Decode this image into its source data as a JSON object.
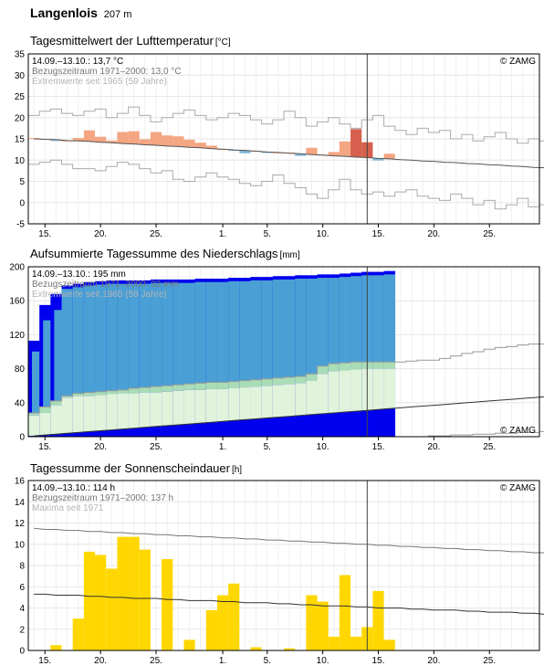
{
  "station": {
    "name": "Langenlois",
    "altitude": "207 m"
  },
  "x_axis": {
    "days": 46,
    "start_day": 13.5,
    "ticks": [
      {
        "label": "15.",
        "day": 15
      },
      {
        "label": "20.",
        "day": 20
      },
      {
        "label": "25.",
        "day": 25
      },
      {
        "label": "1.",
        "day": 31
      },
      {
        "label": "5.",
        "day": 35
      },
      {
        "label": "10.",
        "day": 40
      },
      {
        "label": "15.",
        "day": 45
      },
      {
        "label": "20.",
        "day": 50
      },
      {
        "label": "25.",
        "day": 55
      }
    ],
    "today_day": 44
  },
  "copyright": "© ZAMG",
  "chart_data": [
    {
      "type": "bar",
      "title": "Tagesmittelwert der Lufttemperatur",
      "unit": "[°C]",
      "ylim": [
        -5,
        35
      ],
      "yticks": [
        -5,
        0,
        5,
        10,
        15,
        20,
        25,
        30,
        35
      ],
      "info": [
        "14.09.–13.10.: 13,7 °C",
        "Bezugszeitraum 1971–2000: 13,0 °C",
        "Extremwerte seit 1965 (59 Jahre)"
      ],
      "colors": {
        "cold": "#7fb8d6",
        "cold_dark": "#2e86c1",
        "warm": "#f4a582",
        "warm_dark": "#d6604d",
        "normal": "#555555",
        "extremes": "#aaaaaa"
      },
      "daily_mean": [
        15.2,
        15.0,
        14.5,
        14.6,
        15.2,
        17.0,
        15.5,
        14.6,
        16.6,
        16.8,
        14.9,
        16.6,
        15.8,
        15.6,
        14.8,
        14.1,
        13.4,
        12.6,
        12.2,
        11.6,
        12.2,
        11.7,
        11.8,
        11.8,
        11.0,
        12.9,
        11.3,
        11.9,
        14.4,
        17.3,
        14.2,
        9.9,
        11.5
      ],
      "normal": [
        15.0,
        14.9,
        14.8,
        14.6,
        14.5,
        14.4,
        14.2,
        14.1,
        13.9,
        13.8,
        13.6,
        13.5,
        13.3,
        13.2,
        13.0,
        12.9,
        12.7,
        12.6,
        12.4,
        12.3,
        12.1,
        11.9,
        11.8,
        11.6,
        11.5,
        11.3,
        11.2,
        11.0,
        10.9,
        10.7,
        10.6,
        10.4,
        10.3,
        10.1,
        10.0,
        9.8,
        9.7,
        9.5,
        9.4,
        9.2,
        9.1,
        8.9,
        8.8,
        8.6,
        8.5,
        8.3,
        8.2
      ],
      "max_extreme": [
        20.5,
        21.5,
        22.0,
        21.0,
        20.5,
        21.5,
        22.0,
        20.0,
        21.0,
        22.5,
        20.5,
        19.0,
        20.0,
        21.0,
        21.8,
        20.5,
        19.5,
        20.0,
        21.0,
        20.5,
        19.5,
        18.5,
        19.5,
        21.5,
        20.0,
        18.0,
        19.0,
        20.0,
        18.5,
        17.5,
        19.5,
        20.5,
        18.0,
        17.0,
        16.0,
        17.5,
        16.5,
        17.0,
        15.0,
        16.0,
        14.5,
        15.5,
        16.5,
        15.0,
        14.0,
        15.0,
        14.5
      ],
      "min_extreme": [
        9.0,
        9.5,
        10.0,
        9.0,
        8.0,
        8.0,
        7.5,
        8.5,
        9.5,
        9.0,
        8.0,
        7.0,
        7.5,
        5.5,
        5.0,
        6.0,
        7.0,
        6.0,
        5.5,
        4.5,
        4.0,
        5.0,
        6.5,
        4.5,
        3.5,
        2.0,
        1.0,
        3.0,
        5.5,
        3.0,
        2.0,
        2.5,
        1.5,
        2.5,
        3.0,
        1.5,
        1.0,
        0.5,
        2.0,
        1.0,
        -0.5,
        0.5,
        -1.5,
        -0.5,
        1.0,
        -1.0,
        -0.5
      ]
    },
    {
      "type": "area",
      "title": "Aufsummierte Tagessumme des Niederschlags",
      "unit": "[mm]",
      "ylim": [
        0,
        200
      ],
      "yticks": [
        0,
        40,
        80,
        120,
        160,
        200
      ],
      "info": [
        "14.09.–13.10.: 195 mm",
        "Bezugszeitraum 1971–2000: 33 mm",
        "Extremwerte seit 1965 (59 Jahre)"
      ],
      "colors": {
        "excess": "#0000ee",
        "observed": "#4aa0d5",
        "normal_band": "#a8ddb5",
        "low_band": "#e0f3db",
        "normal": "#333333",
        "extremes": "#999999"
      },
      "cumulative": [
        113,
        155,
        168,
        178,
        180,
        182,
        183,
        184,
        184,
        184,
        184,
        185,
        185,
        185,
        185,
        186,
        186,
        186,
        187,
        187,
        188,
        188,
        189,
        189,
        190,
        190,
        191,
        191,
        192,
        193,
        194,
        194,
        195
      ],
      "normal_cumulative": [
        1,
        2,
        3,
        4,
        5,
        6,
        7,
        8,
        9,
        10,
        11,
        12,
        13,
        14,
        15,
        16,
        17,
        18,
        19,
        20,
        21,
        22,
        23,
        24,
        25,
        26,
        27,
        28,
        29,
        30,
        31,
        32,
        33,
        34,
        35,
        36,
        37,
        38,
        39,
        40,
        41,
        42,
        43,
        44,
        45,
        46,
        47
      ],
      "band_mid": [
        25,
        28,
        37,
        46,
        48,
        48,
        49,
        50,
        51,
        51,
        52,
        52,
        53,
        54,
        55,
        55,
        56,
        56,
        57,
        58,
        59,
        60,
        61,
        62,
        63,
        66,
        74,
        77,
        78,
        79,
        80,
        80,
        80
      ],
      "band_upper": [
        28,
        35,
        42,
        48,
        51,
        52,
        53,
        54,
        55,
        57,
        58,
        59,
        60,
        61,
        62,
        63,
        64,
        64,
        65,
        66,
        67,
        68,
        69,
        70,
        71,
        74,
        83,
        86,
        87,
        88,
        88,
        88,
        88
      ],
      "max_extreme": [
        0,
        0,
        0,
        0,
        0,
        0,
        0,
        0,
        0,
        0,
        0,
        0,
        0,
        0,
        0,
        0,
        0,
        0,
        0,
        0,
        0,
        0,
        0,
        0,
        0,
        0,
        0,
        0,
        0,
        0,
        0,
        0,
        0,
        88,
        89,
        90,
        90,
        92,
        95,
        98,
        100,
        103,
        105,
        106,
        108,
        109,
        109
      ],
      "low_extreme": [
        0,
        0,
        0,
        0,
        0,
        0,
        0,
        0,
        0,
        0,
        0,
        0,
        0,
        0,
        0,
        0,
        0,
        0,
        0,
        0,
        0,
        0,
        0,
        0,
        0,
        0,
        0,
        0,
        0,
        0,
        0,
        0,
        0,
        0,
        0,
        0,
        1,
        1,
        2,
        2,
        3,
        3,
        4,
        4,
        5,
        5,
        6
      ]
    },
    {
      "type": "bar",
      "title": "Tagessumme der Sonnenscheindauer",
      "unit": "[h]",
      "ylim": [
        0,
        16
      ],
      "yticks": [
        0,
        2,
        4,
        6,
        8,
        10,
        12,
        14,
        16
      ],
      "info": [
        "14.09.–13.10.: 114 h",
        "Bezugszeitraum 1971–2000: 137 h",
        "Maxima seit 1971"
      ],
      "colors": {
        "bar": "#ffd700",
        "normal": "#333333",
        "maxima": "#777777"
      },
      "daily_sunshine": [
        0.0,
        0.5,
        0.0,
        3.0,
        9.3,
        9.0,
        7.7,
        10.7,
        10.7,
        9.5,
        0.0,
        8.6,
        0.0,
        1.0,
        0.0,
        3.8,
        5.2,
        6.3,
        0.0,
        0.3,
        0.0,
        0.0,
        0.2,
        0.0,
        5.2,
        4.6,
        1.3,
        7.1,
        1.3,
        2.2,
        5.6,
        1.0
      ],
      "normal": [
        5.3,
        5.3,
        5.2,
        5.2,
        5.2,
        5.1,
        5.1,
        5.0,
        5.0,
        4.9,
        4.9,
        4.9,
        4.8,
        4.8,
        4.7,
        4.7,
        4.7,
        4.6,
        4.6,
        4.5,
        4.5,
        4.5,
        4.4,
        4.4,
        4.3,
        4.3,
        4.2,
        4.2,
        4.2,
        4.1,
        4.1,
        4.0,
        4.0,
        4.0,
        3.9,
        3.9,
        3.8,
        3.8,
        3.8,
        3.7,
        3.7,
        3.6,
        3.6,
        3.6,
        3.5,
        3.5,
        3.4
      ],
      "maxima": [
        11.5,
        11.4,
        11.4,
        11.3,
        11.3,
        11.2,
        11.2,
        11.1,
        11.1,
        11.0,
        11.0,
        10.9,
        10.9,
        10.8,
        10.8,
        10.7,
        10.7,
        10.6,
        10.6,
        10.5,
        10.5,
        10.4,
        10.4,
        10.3,
        10.3,
        10.2,
        10.2,
        10.1,
        10.1,
        10.0,
        10.0,
        9.9,
        9.9,
        9.8,
        9.8,
        9.7,
        9.7,
        9.6,
        9.6,
        9.5,
        9.5,
        9.4,
        9.4,
        9.3,
        9.3,
        9.2,
        9.2
      ]
    }
  ]
}
